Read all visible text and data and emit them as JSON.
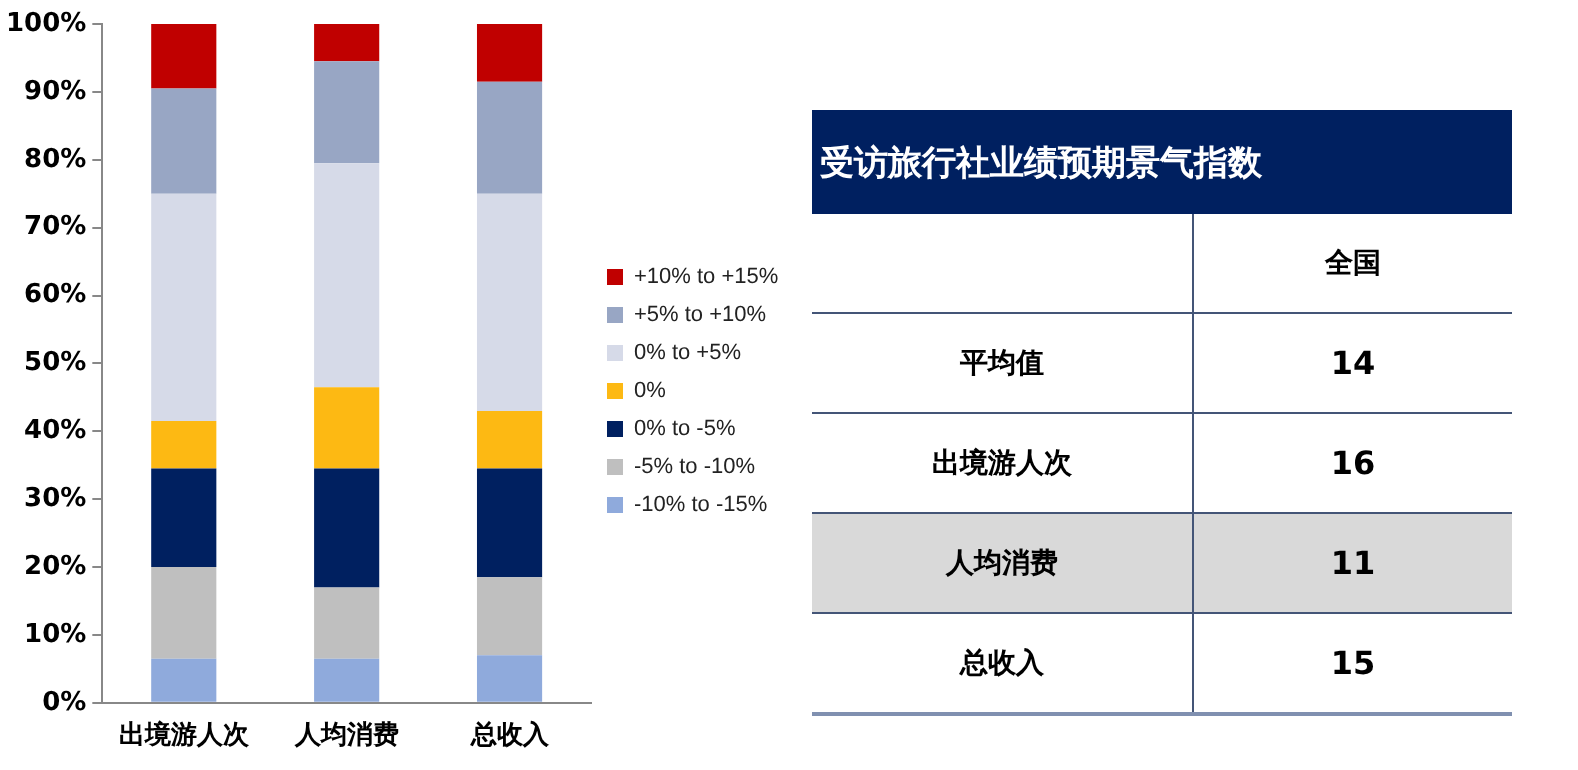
{
  "chart_data": [
    {
      "type": "bar",
      "stacked": true,
      "categories": [
        "出境游人次",
        "人均消费",
        "总收入"
      ],
      "series": [
        {
          "name": "-10% to -15%",
          "color": "#8faadc",
          "values": [
            6.5,
            6.5,
            7
          ]
        },
        {
          "name": "-5% to -10%",
          "color": "#bfbfbf",
          "values": [
            13.5,
            10.5,
            11.5
          ]
        },
        {
          "name": "0% to -5%",
          "color": "#002060",
          "values": [
            14.5,
            17.5,
            16
          ]
        },
        {
          "name": "0%",
          "color": "#fdb913",
          "values": [
            7,
            12,
            8.5
          ]
        },
        {
          "name": "0% to +5%",
          "color": "#d6dae8",
          "values": [
            33.5,
            33,
            32
          ]
        },
        {
          "name": "+5% to +10%",
          "color": "#98a6c4",
          "values": [
            15.5,
            15,
            16.5
          ]
        },
        {
          "name": "+10% to +15%",
          "color": "#c00000",
          "values": [
            9.5,
            5.5,
            8.5
          ]
        }
      ],
      "ylim": [
        0,
        100
      ],
      "yticks": [
        {
          "value": 0,
          "label": "0%"
        },
        {
          "value": 10,
          "label": "10%"
        },
        {
          "value": 20,
          "label": "20%"
        },
        {
          "value": 30,
          "label": "30%"
        },
        {
          "value": 40,
          "label": "40%"
        },
        {
          "value": 50,
          "label": "50%"
        },
        {
          "value": 60,
          "label": "60%"
        },
        {
          "value": 70,
          "label": "70%"
        },
        {
          "value": 80,
          "label": "80%"
        },
        {
          "value": 90,
          "label": "90%"
        },
        {
          "value": 100,
          "label": "100%"
        }
      ],
      "grid": false,
      "legend": "right"
    },
    {
      "type": "other",
      "title": "受访旅行社业绩预期景气指数",
      "categories": [
        "平均值",
        "出境游人次",
        "人均消费",
        "总收入"
      ],
      "series": [
        {
          "name": "全国",
          "values": [
            14,
            16,
            11,
            15
          ]
        }
      ],
      "data_labels": true
    }
  ]
}
